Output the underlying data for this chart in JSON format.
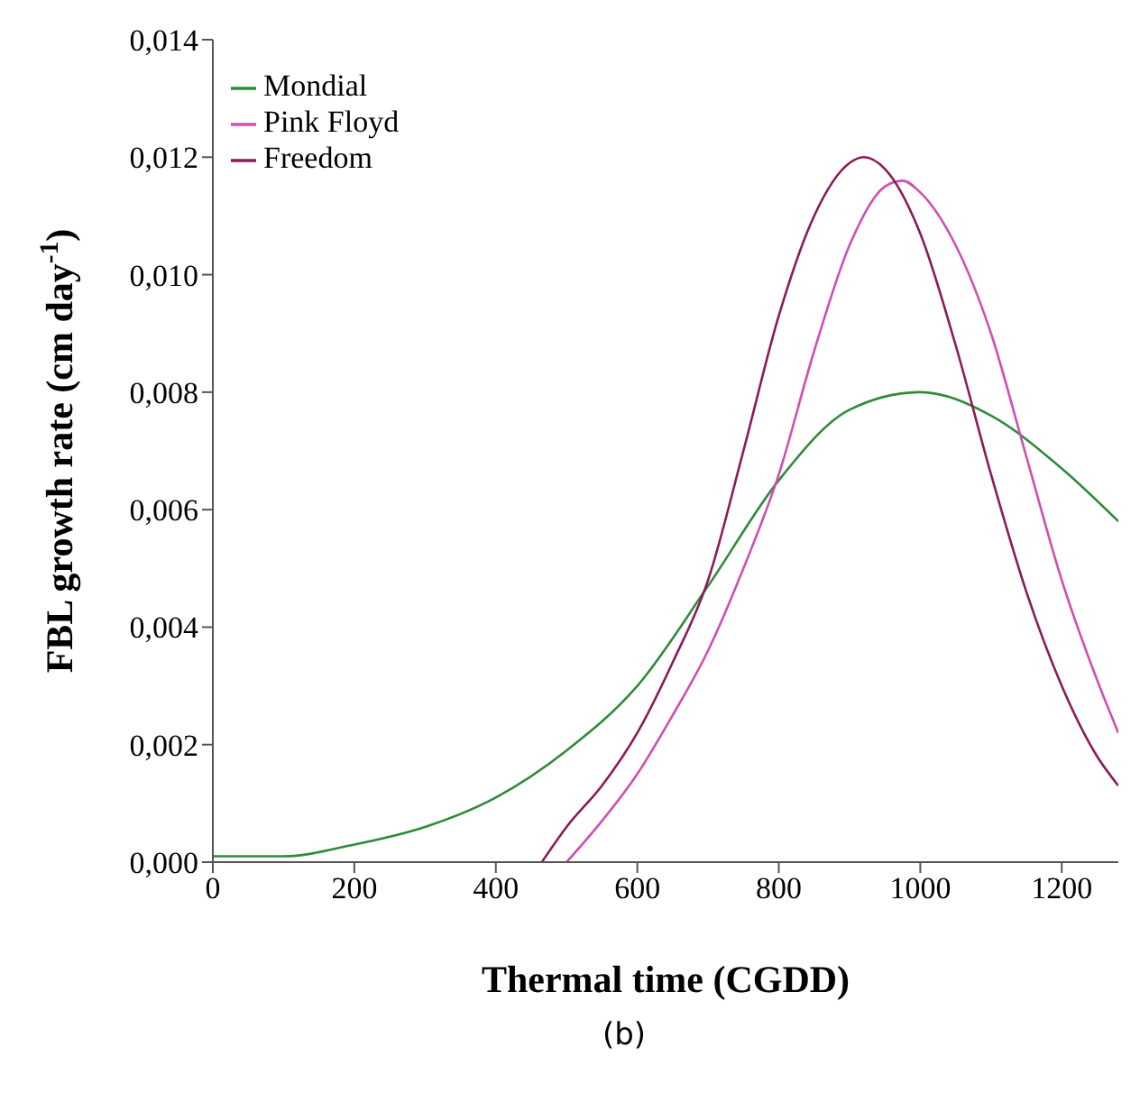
{
  "chart_data": {
    "type": "line",
    "xlabel": "Thermal time (CGDD)",
    "ylabel": "FBL growth rate (cm day$^{-1}$)",
    "annotations": [
      "(b)"
    ],
    "xlim": [
      0,
      1280
    ],
    "xticks": [
      0,
      200,
      400,
      600,
      800,
      1000,
      1200
    ],
    "ylim": [
      0,
      0.014
    ],
    "yticks": [
      {
        "value": 0,
        "label": "0,000"
      },
      {
        "value": 0.002,
        "label": "0,002"
      },
      {
        "value": 0.004,
        "label": "0,004"
      },
      {
        "value": 0.006,
        "label": "0,006"
      },
      {
        "value": 0.008,
        "label": "0,008"
      },
      {
        "value": 0.01,
        "label": "0,010"
      },
      {
        "value": 0.012,
        "label": "0,012"
      },
      {
        "value": 0.014,
        "label": "0,014"
      }
    ],
    "grid": false,
    "legend": "top left",
    "marker": "none",
    "line_style": "solid",
    "series": [
      {
        "name": "Mondial",
        "color": "#2e8b3a",
        "x": [
          0,
          100,
          200,
          300,
          400,
          500,
          600,
          700,
          800,
          900,
          1000,
          1100,
          1200,
          1280
        ],
        "values": [
          0.0001,
          0.0001,
          0.0003,
          0.0006,
          0.0011,
          0.0019,
          0.003,
          0.0047,
          0.0065,
          0.0077,
          0.008,
          0.0076,
          0.0067,
          0.0058
        ]
      },
      {
        "name": "Pink Floyd",
        "color": "#d04fb0",
        "x": [
          500,
          550,
          600,
          650,
          700,
          750,
          800,
          850,
          900,
          950,
          975,
          1000,
          1050,
          1100,
          1150,
          1200,
          1250,
          1280
        ],
        "values": [
          0,
          0.0007,
          0.0015,
          0.0025,
          0.0036,
          0.005,
          0.0066,
          0.0087,
          0.0105,
          0.0115,
          0.0116,
          0.0114,
          0.0105,
          0.009,
          0.0069,
          0.0048,
          0.0031,
          0.0022
        ]
      },
      {
        "name": "Freedom",
        "color": "#8b1a5a",
        "x": [
          465,
          500,
          550,
          600,
          650,
          700,
          750,
          800,
          850,
          900,
          920,
          950,
          1000,
          1050,
          1100,
          1150,
          1200,
          1250,
          1280
        ],
        "values": [
          0,
          0.0006,
          0.0013,
          0.0022,
          0.0034,
          0.0048,
          0.007,
          0.0093,
          0.011,
          0.0119,
          0.012,
          0.0118,
          0.0107,
          0.0088,
          0.0066,
          0.0046,
          0.003,
          0.0018,
          0.0013
        ]
      }
    ]
  }
}
